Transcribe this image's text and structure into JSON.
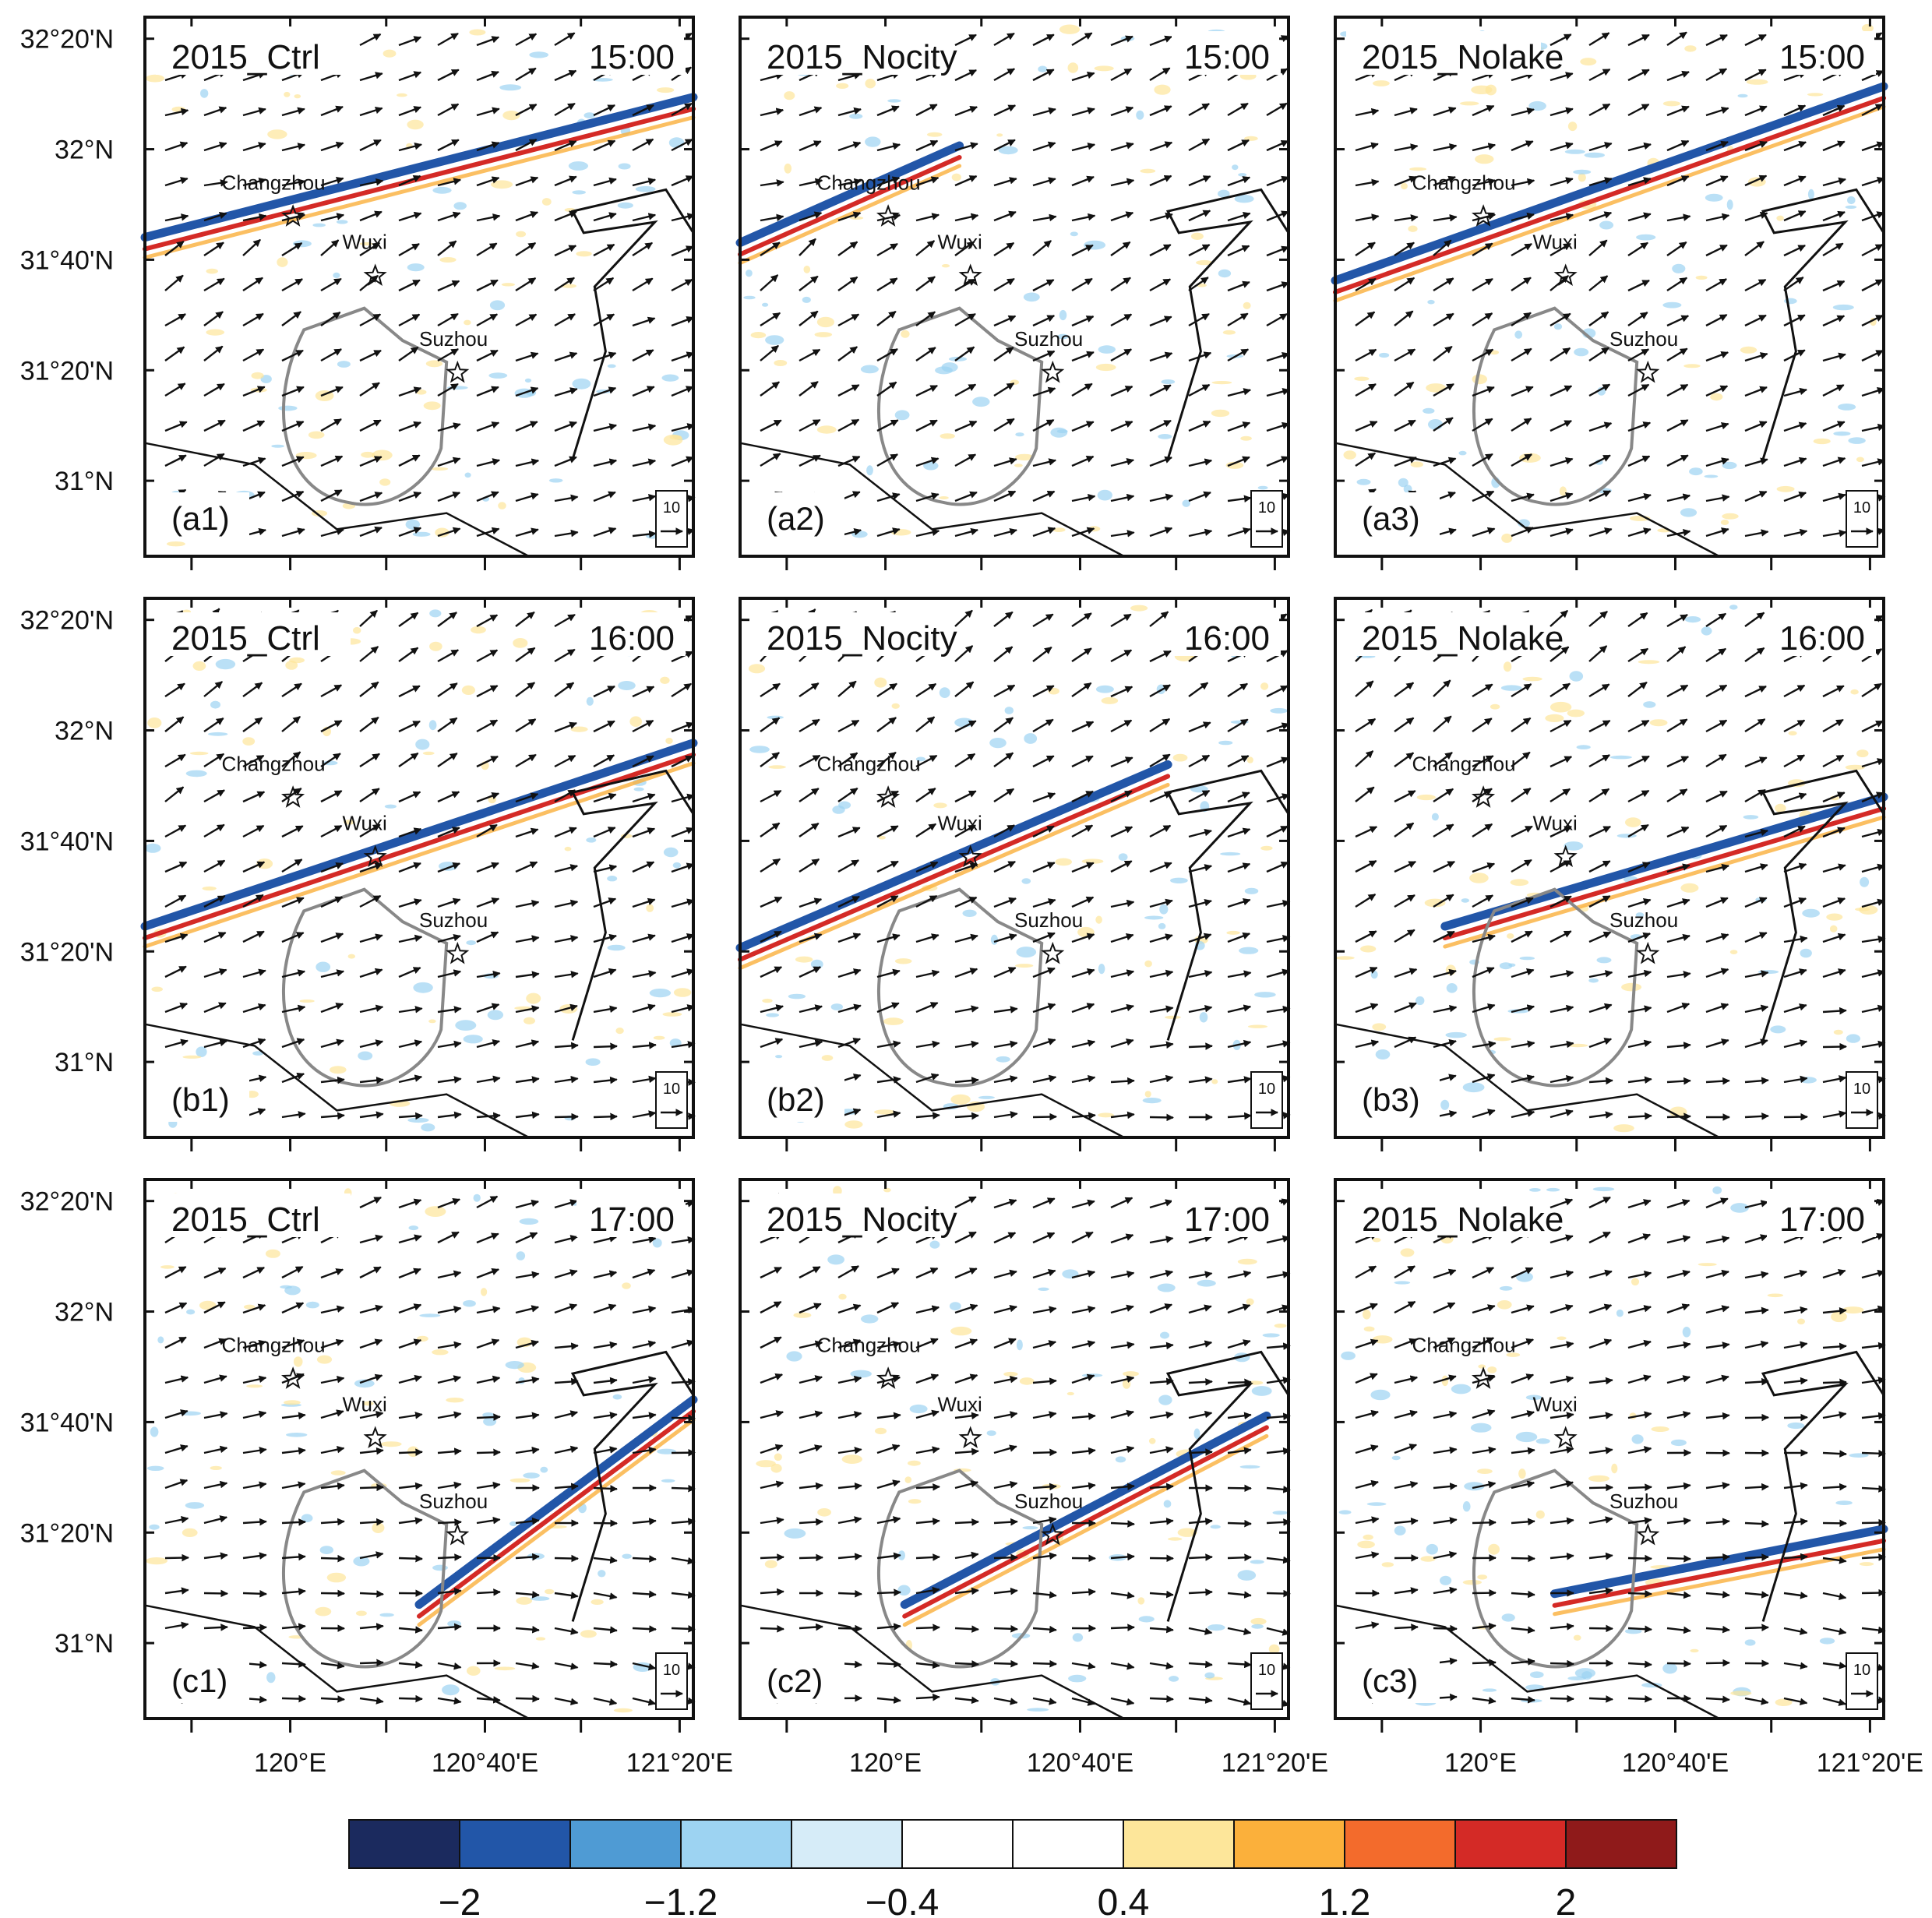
{
  "figure": {
    "columns": [
      "2015_Ctrl",
      "2015_Nocity",
      "2015_Nolake"
    ],
    "rows": [
      "15:00",
      "16:00",
      "17:00"
    ],
    "panel_labels": [
      [
        "(a1)",
        "(a2)",
        "(a3)"
      ],
      [
        "(b1)",
        "(b2)",
        "(b3)"
      ],
      [
        "(c1)",
        "(c2)",
        "(c3)"
      ]
    ],
    "lat_ticks": [
      "32°20'N",
      "32°N",
      "31°40'N",
      "31°20'N",
      "31°N"
    ],
    "lon_ticks": [
      "120°E",
      "120°40'E",
      "121°20'E"
    ],
    "cities": [
      "Changzhou",
      "Wuxi",
      "Suzhou"
    ],
    "reference_vector": "10",
    "colorbar": {
      "colors": [
        "#1b2a5e",
        "#2256a8",
        "#4f9bd4",
        "#9dd3f2",
        "#d6ecf8",
        "#ffffff",
        "#ffffff",
        "#fde69a",
        "#fbb03b",
        "#f36b2c",
        "#d42a26",
        "#8f1a1a"
      ],
      "tick_labels": [
        "-2",
        "-1.2",
        "-0.4",
        "0.4",
        "1.2",
        "2"
      ],
      "tick_values": [
        -2,
        -1.2,
        -0.4,
        0.4,
        1.2,
        2
      ]
    }
  }
}
